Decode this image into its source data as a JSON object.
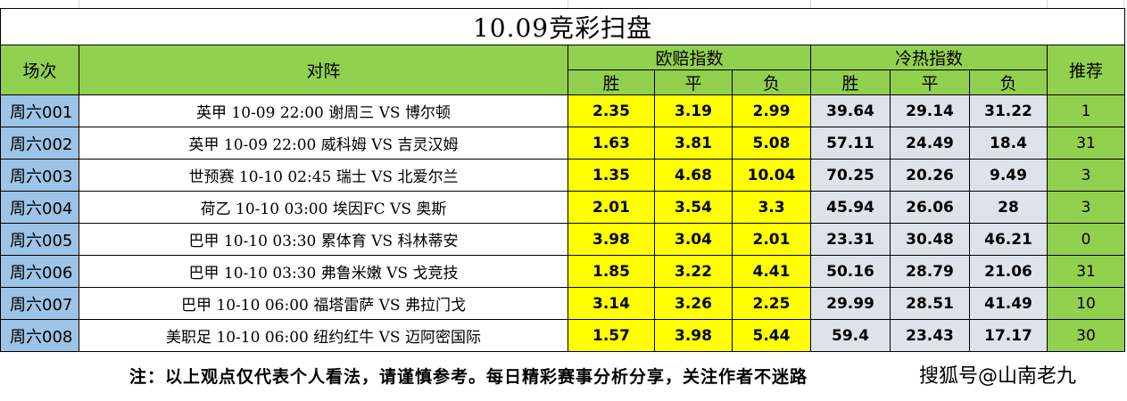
{
  "title": "10.09竞彩扫盘",
  "headers": {
    "match_no": "场次",
    "fixture": "对阵",
    "euro_odds": "欧赔指数",
    "heat_index": "冷热指数",
    "recommend": "推荐",
    "win": "胜",
    "draw": "平",
    "lose": "负"
  },
  "rows": [
    {
      "no": "周六001",
      "match": "英甲 10-09 22:00 谢周三 VS 博尔顿",
      "ow": "2.35",
      "od": "3.19",
      "ol": "2.99",
      "hw": "39.64",
      "hd": "29.14",
      "hl": "31.22",
      "rec": "1"
    },
    {
      "no": "周六002",
      "match": "英甲 10-09 22:00 威科姆 VS 吉灵汉姆",
      "ow": "1.63",
      "od": "3.81",
      "ol": "5.08",
      "hw": "57.11",
      "hd": "24.49",
      "hl": "18.4",
      "rec": "31"
    },
    {
      "no": "周六003",
      "match": "世预赛 10-10 02:45 瑞士 VS 北爱尔兰",
      "ow": "1.35",
      "od": "4.68",
      "ol": "10.04",
      "hw": "70.25",
      "hd": "20.26",
      "hl": "9.49",
      "rec": "3"
    },
    {
      "no": "周六004",
      "match": "荷乙 10-10 03:00 埃因FC VS 奥斯",
      "ow": "2.01",
      "od": "3.54",
      "ol": "3.3",
      "hw": "45.94",
      "hd": "26.06",
      "hl": "28",
      "rec": "3"
    },
    {
      "no": "周六005",
      "match": "巴甲 10-10 03:30 累体育 VS 科林蒂安",
      "ow": "3.98",
      "od": "3.04",
      "ol": "2.01",
      "hw": "23.31",
      "hd": "30.48",
      "hl": "46.21",
      "rec": "0"
    },
    {
      "no": "周六006",
      "match": "巴甲 10-10 03:30 弗鲁米嫩 VS 戈竞技",
      "ow": "1.85",
      "od": "3.22",
      "ol": "4.41",
      "hw": "50.16",
      "hd": "28.79",
      "hl": "21.06",
      "rec": "31"
    },
    {
      "no": "周六007",
      "match": "巴甲 10-10 06:00 福塔雷萨 VS 弗拉门戈",
      "ow": "3.14",
      "od": "3.26",
      "ol": "2.25",
      "hw": "29.99",
      "hd": "28.51",
      "hl": "41.49",
      "rec": "10"
    },
    {
      "no": "周六008",
      "match": "美职足 10-10 06:00 纽约红牛 VS 迈阿密国际",
      "ow": "1.57",
      "od": "3.98",
      "ol": "5.44",
      "hw": "59.4",
      "hd": "23.43",
      "hl": "17.17",
      "rec": "30"
    }
  ],
  "note": "注：以上观点仅代表个人看法，请谨慎参考。每日精彩赛事分析分享，关注作者不迷路",
  "watermark": "搜狐号@山南老九",
  "colors": {
    "header_green": "#92d050",
    "match_no_blue": "#9dc3e6",
    "odds_yellow": "#ffff00",
    "heat_grey": "#dde3ea"
  }
}
